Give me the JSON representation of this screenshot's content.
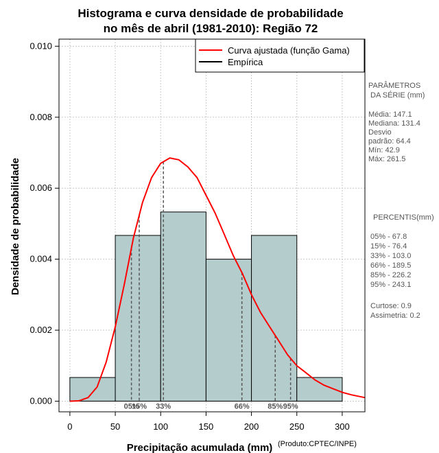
{
  "chart_data": {
    "type": "bar",
    "title_line1": "Histograma e curva densidade de probabilidade",
    "title_line2": "no mês de abril (1981-2010): Região 72",
    "xlabel": "Precipitação acumulada (mm)",
    "ylabel": "Densidade de probabilidade",
    "credit": "(Produto:CPTEC/INPE)",
    "xlim": [
      -12,
      325
    ],
    "ylim": [
      -0.0003,
      0.0102
    ],
    "x_ticks": [
      0,
      50,
      100,
      150,
      200,
      250,
      300
    ],
    "y_ticks": [
      0.0,
      0.002,
      0.004,
      0.006,
      0.008,
      0.01
    ],
    "y_tick_labels": [
      "0.000",
      "0.002",
      "0.004",
      "0.006",
      "0.008",
      "0.010"
    ],
    "bins": [
      {
        "from": 0,
        "to": 50,
        "density": 0.000667
      },
      {
        "from": 50,
        "to": 100,
        "density": 0.00467
      },
      {
        "from": 100,
        "to": 150,
        "density": 0.00533
      },
      {
        "from": 150,
        "to": 200,
        "density": 0.004
      },
      {
        "from": 200,
        "to": 250,
        "density": 0.00467
      },
      {
        "from": 250,
        "to": 300,
        "density": 0.000667
      }
    ],
    "fitted_curve": {
      "name": "Curva ajustada (função Gama)",
      "color": "#ff0000",
      "x": [
        0,
        10,
        20,
        30,
        40,
        50,
        60,
        70,
        80,
        90,
        100,
        110,
        120,
        130,
        140,
        150,
        160,
        170,
        180,
        190,
        200,
        210,
        220,
        230,
        240,
        250,
        260,
        270,
        280,
        290,
        300,
        310,
        325
      ],
      "y": [
        0.0,
        1e-05,
        0.0001,
        0.0004,
        0.0011,
        0.0021,
        0.0033,
        0.0046,
        0.0056,
        0.0063,
        0.0067,
        0.00685,
        0.0068,
        0.0066,
        0.0063,
        0.0058,
        0.0053,
        0.0047,
        0.0041,
        0.0036,
        0.003,
        0.0025,
        0.0021,
        0.0017,
        0.0013,
        0.001,
        0.0008,
        0.0006,
        0.00045,
        0.00035,
        0.00025,
        0.00018,
        0.0001
      ]
    },
    "empirical_name": "Empírica",
    "bar_fill": "#b4cccc",
    "percentile_markers": [
      {
        "x": 67.8,
        "label": "05%"
      },
      {
        "x": 76.4,
        "label": "15%"
      },
      {
        "x": 103.0,
        "label": "33%"
      },
      {
        "x": 189.5,
        "label": "66%"
      },
      {
        "x": 226.2,
        "label": "85%"
      },
      {
        "x": 243.1,
        "label": "95%"
      }
    ],
    "side_panel": {
      "params_title1": "PARÂMETROS",
      "params_title2": "DA SÉRIE (mm)",
      "params": [
        "Média:  147.1",
        "Mediana:  131.4",
        "Desvio",
        "padrão:  64.4",
        "Mín:  42.9",
        "Máx:  261.5"
      ],
      "percentiles_title": "PERCENTIS(mm)",
      "percentiles": [
        "05% -   67.8",
        "15% -   76.4",
        "33% -  103.0",
        "66% -  189.5",
        "85% -  226.2",
        "95% -  243.1"
      ],
      "stats": [
        "Curtose:  0.9",
        "Assimetria:  0.2"
      ]
    }
  }
}
